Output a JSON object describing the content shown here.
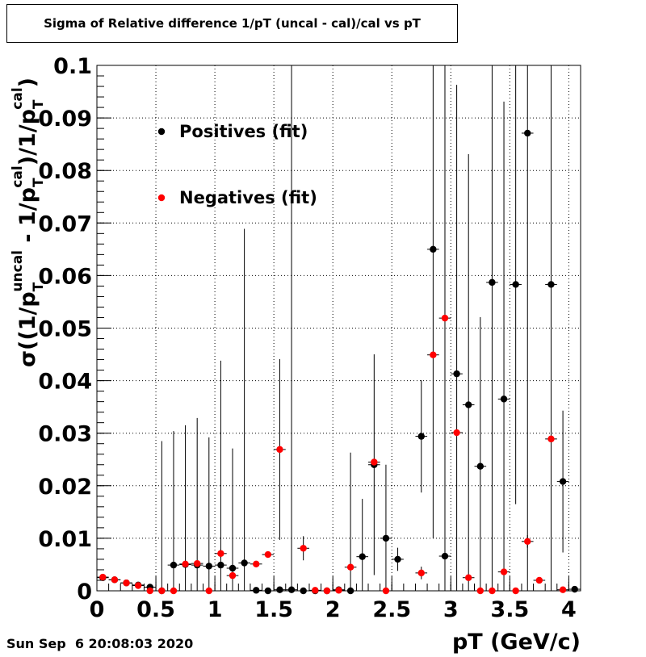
{
  "chart_data": {
    "type": "scatter",
    "title": "Sigma of Relative difference 1/pT (uncal - cal)/cal vs pT",
    "xlabel": "pT (GeV/c)",
    "ylabel": {
      "main": "σ((1/p",
      "sub1": "T",
      "sup1": "uncal",
      "mid": " - 1/p",
      "sub2": "T",
      "sup2": "cal",
      "end": ")/1/p",
      "sub3": "T",
      "sup3": "cal",
      "close": ")"
    },
    "xlim": [
      0,
      4.1
    ],
    "ylim": [
      0,
      0.1
    ],
    "xticks": [
      "0",
      "0.5",
      "1",
      "1.5",
      "2",
      "2.5",
      "3",
      "3.5",
      "4"
    ],
    "xtick_values": [
      0,
      0.5,
      1,
      1.5,
      2,
      2.5,
      3,
      3.5,
      4
    ],
    "yticks": [
      "0",
      "0.01",
      "0.02",
      "0.03",
      "0.04",
      "0.05",
      "0.06",
      "0.07",
      "0.08",
      "0.09",
      "0.1"
    ],
    "ytick_values": [
      0,
      0.01,
      0.02,
      0.03,
      0.04,
      0.05,
      0.06,
      0.07,
      0.08,
      0.09,
      0.1
    ],
    "grid": true,
    "legend_position": "top-left",
    "series": [
      {
        "name": "Positives (fit)",
        "color": "#000000",
        "x": [
          0.05,
          0.15,
          0.25,
          0.35,
          0.45,
          0.55,
          0.65,
          0.75,
          0.85,
          0.95,
          1.05,
          1.15,
          1.25,
          1.35,
          1.45,
          1.55,
          1.65,
          1.75,
          1.85,
          1.95,
          2.05,
          2.15,
          2.25,
          2.35,
          2.45,
          2.55,
          2.75,
          2.85,
          2.95,
          3.05,
          3.15,
          3.25,
          3.35,
          3.45,
          3.55,
          3.65,
          3.85,
          3.95,
          4.05
        ],
        "y": [
          0.0025,
          0.0021,
          0.0015,
          0.0011,
          0.0007,
          0.0,
          0.0049,
          0.005,
          0.0049,
          0.0047,
          0.0049,
          0.0043,
          0.0053,
          0.0001,
          0.0,
          0.0002,
          0.0002,
          0.0,
          0.0,
          0.0,
          0.0002,
          0.0,
          0.0065,
          0.024,
          0.01,
          0.006,
          0.0294,
          0.065,
          0.0066,
          0.0413,
          0.0354,
          0.0237,
          0.0587,
          0.0365,
          0.0583,
          0.0871,
          0.0583,
          0.0208,
          0.0003
        ],
        "yerr": [
          0.0003,
          0.0003,
          0.0003,
          0.0003,
          0.0003,
          0.0285,
          0.0255,
          0.0265,
          0.028,
          0.0245,
          0.0389,
          0.0228,
          0.0636,
          0.0003,
          0.0003,
          0.0003,
          0.12,
          0.0003,
          0.0003,
          0.0003,
          0.0003,
          0.0263,
          0.011,
          0.021,
          0.014,
          0.0022,
          0.0107,
          0.055,
          0.12,
          0.055,
          0.0477,
          0.0284,
          0.12,
          0.0566,
          0.0418,
          0.12,
          0.12,
          0.0135,
          0.0003
        ]
      },
      {
        "name": "Negatives (fit)",
        "color": "#ff0000",
        "x": [
          0.05,
          0.15,
          0.25,
          0.35,
          0.45,
          0.55,
          0.65,
          0.75,
          0.85,
          0.95,
          1.05,
          1.15,
          1.35,
          1.45,
          1.55,
          1.75,
          1.85,
          1.95,
          2.05,
          2.15,
          2.35,
          2.45,
          2.75,
          2.85,
          2.95,
          3.05,
          3.15,
          3.25,
          3.35,
          3.45,
          3.55,
          3.65,
          3.75,
          3.85,
          3.95
        ],
        "y": [
          0.0026,
          0.0021,
          0.0015,
          0.001,
          0.0,
          0.0,
          0.0,
          0.0051,
          0.0052,
          0.0,
          0.0071,
          0.0029,
          0.0051,
          0.0069,
          0.0269,
          0.0081,
          0.0001,
          0.0,
          0.0001,
          0.0045,
          0.0245,
          0.0,
          0.0034,
          0.0449,
          0.0519,
          0.0301,
          0.0025,
          0.0,
          0.0,
          0.0036,
          0.0,
          0.0094,
          0.002,
          0.0289,
          0.0002
        ],
        "yerr": [
          0.0003,
          0.0003,
          0.0003,
          0.0003,
          0.0003,
          0.0003,
          0.0003,
          0.0003,
          0.0003,
          0.0003,
          0.0008,
          0.0006,
          0.0003,
          0.0003,
          0.0172,
          0.0023,
          0.0003,
          0.0003,
          0.0003,
          0.0006,
          0.0005,
          0.0003,
          0.0012,
          0.0003,
          0.0003,
          0.0003,
          0.0003,
          0.0003,
          0.0003,
          0.0003,
          0.0003,
          0.0012,
          0.0003,
          0.0003,
          0.0003
        ]
      }
    ]
  },
  "footer": {
    "timestamp": "Sun Sep  6 20:08:03 2020"
  }
}
